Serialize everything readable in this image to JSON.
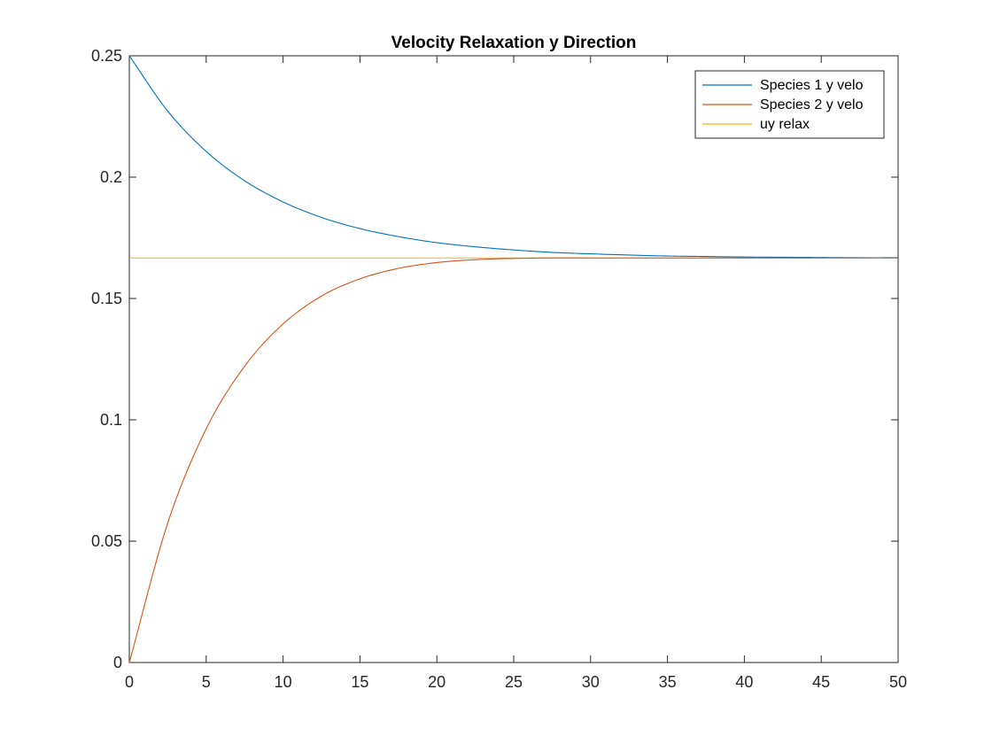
{
  "chart_data": {
    "type": "line",
    "title": "Velocity Relaxation y Direction",
    "xlabel": "",
    "ylabel": "",
    "xlim": [
      0,
      50
    ],
    "ylim": [
      0,
      0.25
    ],
    "x_ticks": [
      "0",
      "5",
      "10",
      "15",
      "20",
      "25",
      "30",
      "35",
      "40",
      "45",
      "50"
    ],
    "y_ticks": [
      "0",
      "0.05",
      "0.1",
      "0.15",
      "0.2",
      "0.25"
    ],
    "grid": false,
    "legend_position": "top-right",
    "x": [
      0,
      2.5,
      5,
      7.5,
      10,
      12.5,
      15,
      17.5,
      20,
      22.5,
      25,
      27.5,
      30,
      32.5,
      35,
      37.5,
      40,
      42.5,
      45,
      47.5,
      50
    ],
    "series": [
      {
        "name": "Species 1 y velo",
        "color": "#0072BD",
        "values": [
          0.25,
          0.2272,
          0.2106,
          0.1985,
          0.1898,
          0.1834,
          0.1788,
          0.1755,
          0.173,
          0.1713,
          0.17,
          0.169,
          0.1684,
          0.1679,
          0.1675,
          0.1673,
          0.1671,
          0.167,
          0.1669,
          0.1668,
          0.1668
        ]
      },
      {
        "name": "Species 2 y velo",
        "color": "#D95319",
        "values": [
          0.0,
          0.0575,
          0.0963,
          0.1221,
          0.1395,
          0.151,
          0.1581,
          0.1624,
          0.1648,
          0.166,
          0.1665,
          0.1667,
          0.1667,
          0.1667,
          0.1667,
          0.1667,
          0.1667,
          0.1667,
          0.1667,
          0.1667,
          0.1667
        ]
      },
      {
        "name": "uy relax",
        "color": "#EDB120",
        "values": [
          0.1667,
          0.1667,
          0.1667,
          0.1667,
          0.1667,
          0.1667,
          0.1667,
          0.1667,
          0.1667,
          0.1667,
          0.1667,
          0.1667,
          0.1667,
          0.1667,
          0.1667,
          0.1667,
          0.1667,
          0.1667,
          0.1667,
          0.1667,
          0.1667
        ]
      }
    ]
  }
}
